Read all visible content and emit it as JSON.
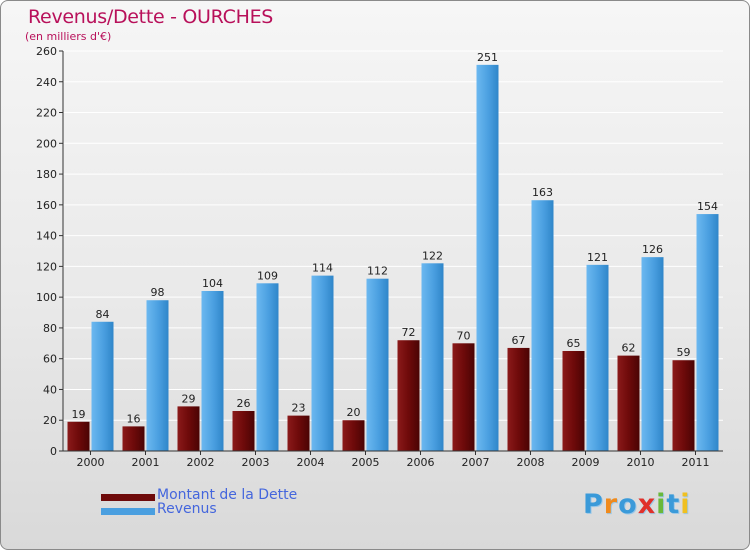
{
  "header": {
    "title": "Revenus/Dette - OURCHES",
    "subtitle": "(en milliers d'€)"
  },
  "legend": [
    {
      "label": "Montant de la Dette",
      "color": "#6e0a0a"
    },
    {
      "label": "Revenus",
      "color": "#4a9fe0"
    }
  ],
  "logo": {
    "text": "Proxiti"
  },
  "colors": {
    "title": "#b8105a",
    "dette": "#6e0a0a",
    "revenus": "#4a9fe0",
    "legend_text": "#4466dd"
  },
  "chart_data": {
    "type": "bar",
    "categories": [
      "2000",
      "2001",
      "2002",
      "2003",
      "2004",
      "2005",
      "2006",
      "2007",
      "2008",
      "2009",
      "2010",
      "2011"
    ],
    "series": [
      {
        "name": "Montant de la Dette",
        "values": [
          19,
          16,
          29,
          26,
          23,
          20,
          72,
          70,
          67,
          65,
          62,
          59
        ]
      },
      {
        "name": "Revenus",
        "values": [
          84,
          98,
          104,
          109,
          114,
          112,
          122,
          251,
          163,
          121,
          126,
          154
        ]
      }
    ],
    "yticks": [
      0,
      20,
      40,
      60,
      80,
      100,
      120,
      140,
      160,
      180,
      200,
      220,
      240,
      260
    ],
    "ylim": [
      0,
      260
    ],
    "grid": true,
    "legend_position": "bottom-left"
  }
}
